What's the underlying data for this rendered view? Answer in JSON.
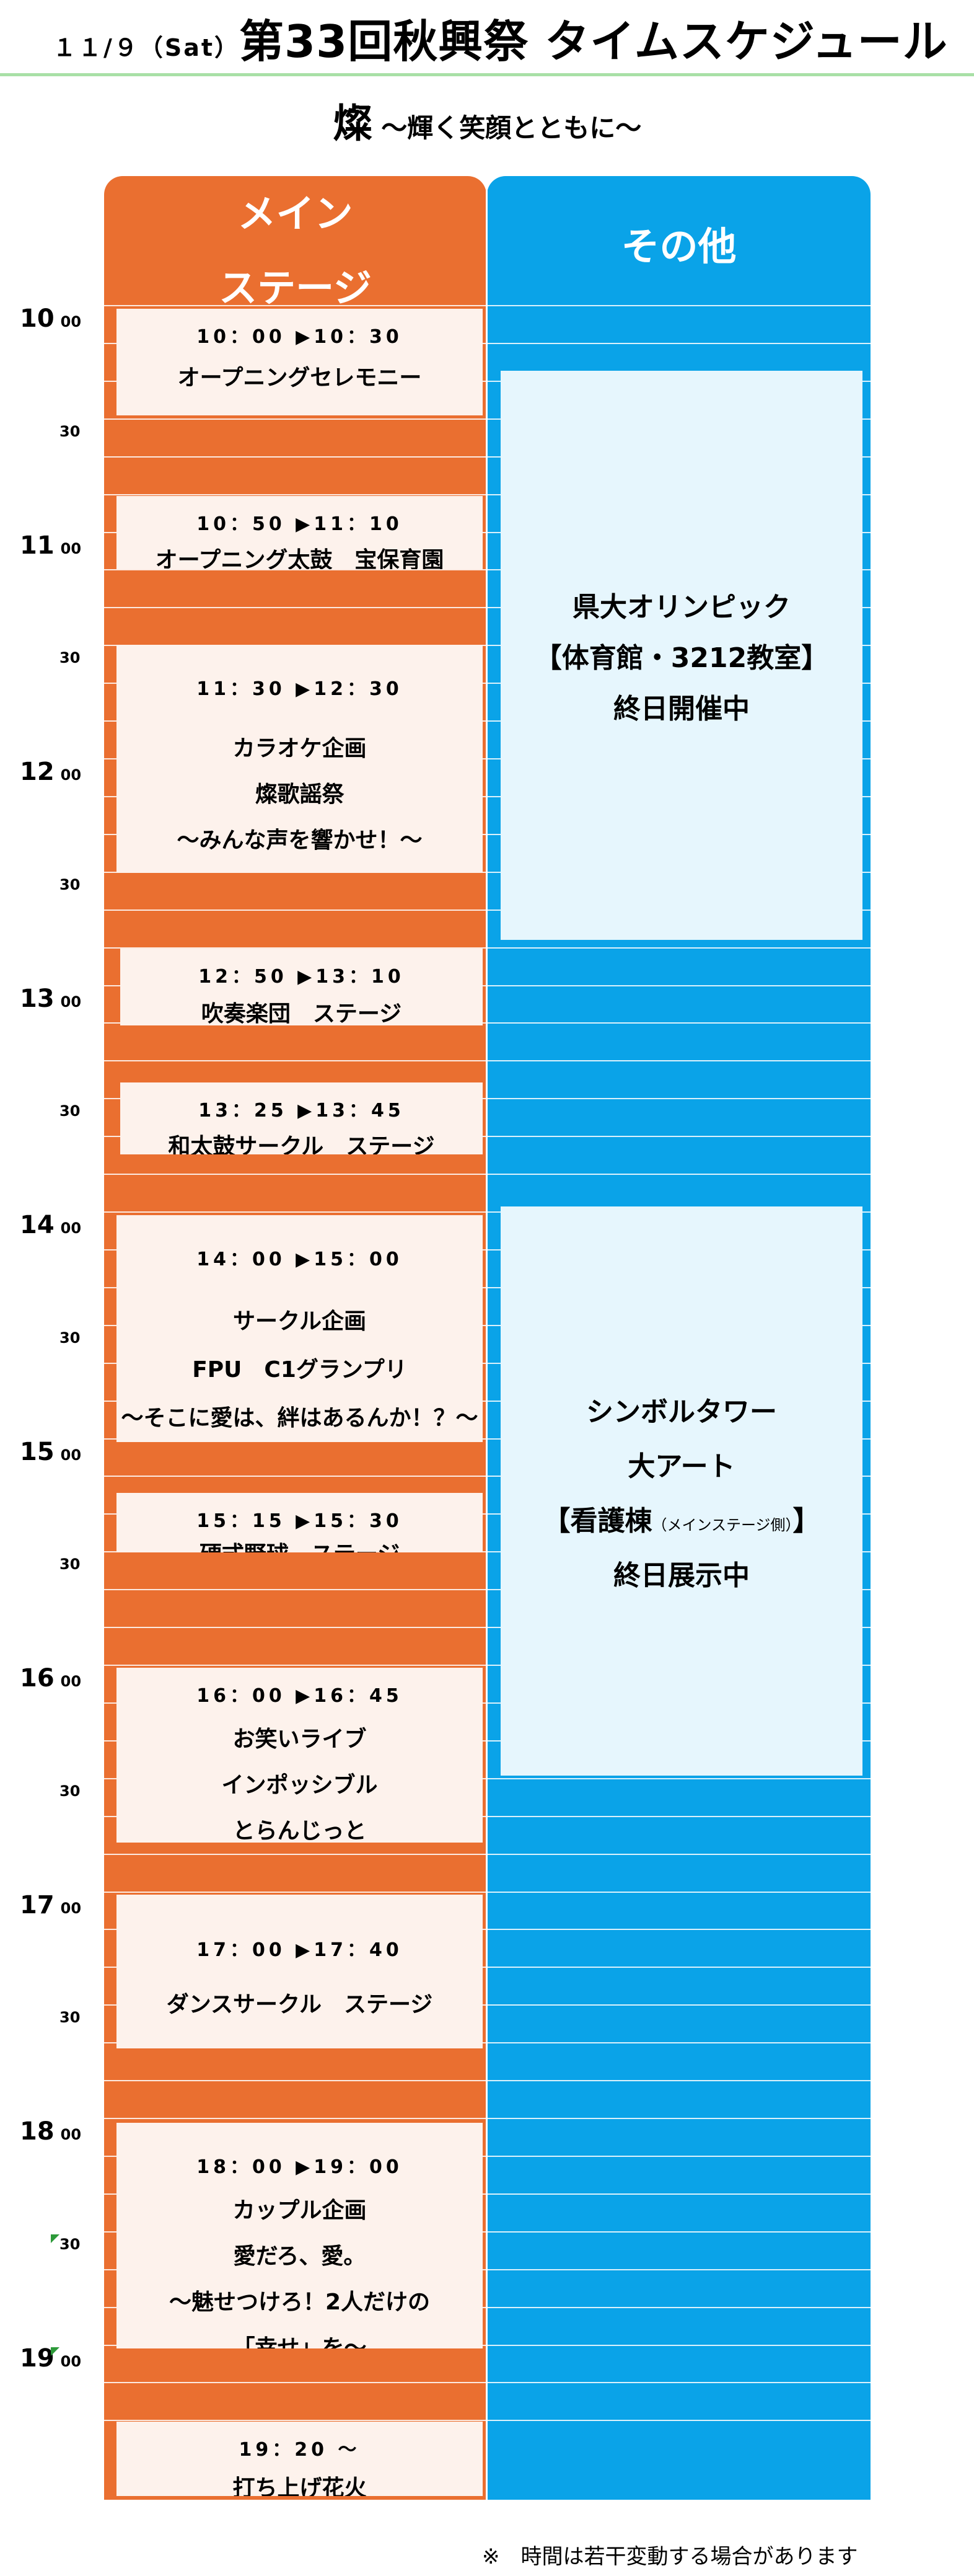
{
  "header": {
    "date": "１１/９（Sat）",
    "title": "第33回秋興祭 タイムスケジュール"
  },
  "subtitle": {
    "kanji": "燦",
    "rest": " ～輝く笑顔とともに～"
  },
  "columns": {
    "main": [
      "メイン",
      "ステージ"
    ],
    "other": "その他"
  },
  "times": {
    "hours": [
      "10",
      "11",
      "12",
      "13",
      "14",
      "15",
      "16",
      "17",
      "18",
      "19"
    ],
    "min_00": "00",
    "min_30": "30"
  },
  "events": [
    {
      "time": "10：00 ▶10：30",
      "lines": [
        "オープニングセレモニー"
      ]
    },
    {
      "time": "10：50 ▶11：10",
      "lines": [
        "オープニング太鼓　宝保育園"
      ]
    },
    {
      "time": "11：30 ▶12：30",
      "lines": [
        "カラオケ企画",
        "燦歌謡祭",
        "～みんな声を響かせ！～"
      ]
    },
    {
      "time": "12：50 ▶13：10",
      "lines": [
        "吹奏楽団　ステージ"
      ]
    },
    {
      "time": "13：25 ▶13：45",
      "lines": [
        "和太鼓サークル　ステージ"
      ]
    },
    {
      "time": "14：00 ▶15：00",
      "lines": [
        "サークル企画",
        "FPU　C1グランプリ",
        "～そこに愛は、絆はあるんか！？～"
      ]
    },
    {
      "time": "15：15 ▶15：30",
      "lines": [
        "硬式野球　ステージ"
      ]
    },
    {
      "time": "16：00 ▶16：45",
      "lines": [
        "お笑いライブ",
        "インポッシブル",
        "とらんじっと"
      ]
    },
    {
      "time": "17：00 ▶17：40",
      "lines": [
        "ダンスサークル　ステージ"
      ]
    },
    {
      "time": "18：00 ▶19：00",
      "lines": [
        "カップル企画",
        "愛だろ、愛。",
        "～魅せつけろ！2人だけの",
        "「幸せ」を～"
      ]
    },
    {
      "time": "19：20 ～",
      "lines": [
        "打ち上げ花火"
      ]
    }
  ],
  "other_events": [
    {
      "lines": [
        "県大オリンピック",
        "【体育館・3212教室】",
        "終日開催中"
      ]
    },
    {
      "lines": [
        "シンボルタワー",
        "大アート",
        "【看護棟",
        "（メインステージ側）",
        "】",
        "終日展示中"
      ]
    }
  ],
  "footnote": "※　時間は若干変動する場合があります",
  "colors": {
    "main_column": "#ea6f30",
    "other_column": "#0aa3e8",
    "event_box": "#fdf2ec",
    "other_box": "#e6f6fd",
    "header_rule": "#a8e0a6"
  }
}
